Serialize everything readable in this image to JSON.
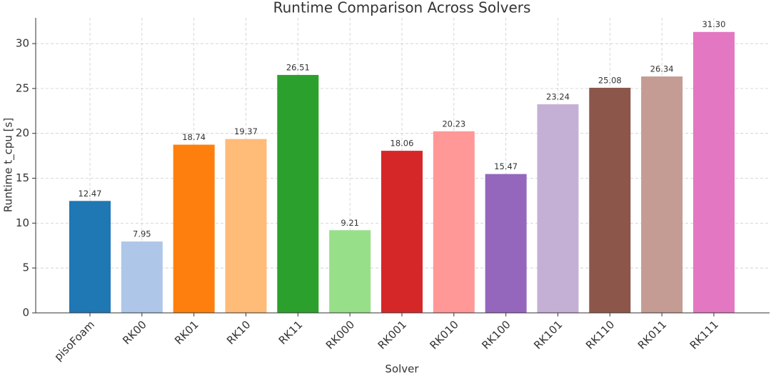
{
  "chart_data": {
    "type": "bar",
    "title": "Runtime Comparison Across Solvers",
    "x_label": "Solver",
    "y_label": "Runtime t_cpu [s]",
    "categories": [
      "pisoFoam",
      "RK00",
      "RK01",
      "RK10",
      "RK11",
      "RK000",
      "RK001",
      "RK010",
      "RK100",
      "RK101",
      "RK110",
      "RK011",
      "RK111"
    ],
    "values": [
      12.47,
      7.95,
      18.74,
      19.37,
      26.51,
      9.21,
      18.06,
      20.23,
      15.47,
      23.24,
      25.08,
      26.34,
      31.3
    ],
    "value_labels": [
      "12.47",
      "7.95",
      "18.74",
      "19.37",
      "26.51",
      "9.21",
      "18.06",
      "20.23",
      "15.47",
      "23.24",
      "25.08",
      "26.34",
      "31.30"
    ],
    "colors": [
      "#1f77b4",
      "#aec7e8",
      "#ff7f0e",
      "#ffbb78",
      "#2ca02c",
      "#98df8a",
      "#d62728",
      "#ff9896",
      "#9467bd",
      "#c5b0d5",
      "#8c564b",
      "#c49c94",
      "#e377c2"
    ],
    "ylim": [
      0,
      32.87
    ],
    "yticks": [
      0,
      5,
      10,
      15,
      20,
      25,
      30
    ],
    "grid": true
  }
}
